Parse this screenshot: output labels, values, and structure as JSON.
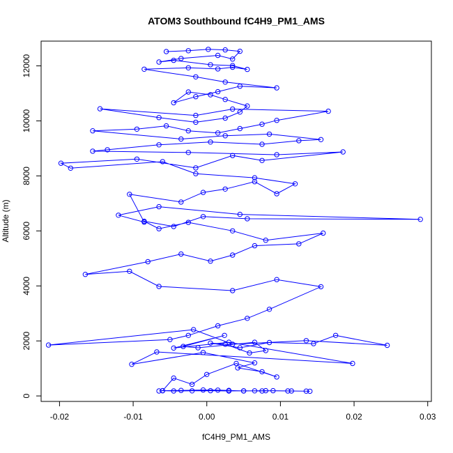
{
  "chart_data": {
    "type": "line",
    "title": "ATOM3 Southbound fC4H9_PM1_AMS",
    "xlabel": "fC4H9_PM1_AMS",
    "ylabel": "Altitude (m)",
    "xlim": [
      -0.0225,
      0.0305
    ],
    "ylim": [
      -200,
      12900
    ],
    "xticks": [
      -0.02,
      -0.01,
      0.0,
      0.01,
      0.02,
      0.03
    ],
    "xtick_labels": [
      "-0.02",
      "-0.01",
      "0.00",
      "0.01",
      "0.02",
      "0.03"
    ],
    "yticks": [
      0,
      2000,
      4000,
      6000,
      8000,
      10000,
      12000
    ],
    "ytick_labels": [
      "0",
      "2000",
      "4000",
      "6000",
      "8000",
      "10000",
      "12000"
    ],
    "grid": false,
    "legend": "none",
    "series": [
      {
        "color": "#0000ff",
        "marker": "open-circle",
        "x": [
          -0.0065,
          -0.006,
          -0.0045,
          -0.002,
          0.0005,
          0.003,
          0.005,
          0.0075,
          0.009,
          0.0115,
          0.014,
          0.0135,
          0.011,
          0.008,
          0.0065,
          0.005,
          0.003,
          0.0015,
          -0.0005,
          -0.0035,
          -0.006,
          -0.0045,
          -0.002,
          0.0,
          0.004,
          0.0095,
          0.0075,
          0.0042,
          0.0065,
          -0.0005,
          -0.0102,
          -0.0068,
          0.0198,
          0.003,
          -0.0045,
          0.0024,
          -0.0032,
          -0.0012,
          0.0065,
          0.008,
          0.0058,
          0.0025,
          0.0005,
          0.0045,
          0.0085,
          0.0145,
          0.0175,
          0.0245,
          0.0135,
          0.0035,
          -0.0018,
          -0.0215,
          -0.005,
          -0.0025,
          0.0015,
          0.0055,
          0.0085,
          0.0155,
          0.0095,
          0.0035,
          -0.0065,
          -0.0105,
          -0.0165,
          -0.008,
          -0.0035,
          0.0005,
          0.0035,
          0.0065,
          0.0125,
          0.0158,
          0.008,
          0.0035,
          -0.0025,
          -0.0065,
          -0.0085,
          -0.0045,
          -0.0005,
          0.0055,
          0.029,
          0.0045,
          -0.0065,
          -0.012,
          -0.0085,
          -0.0105,
          -0.0035,
          -0.0005,
          0.0025,
          0.0065,
          0.0095,
          0.012,
          0.0065,
          -0.0015,
          -0.006,
          -0.0185,
          -0.0198,
          -0.0095,
          -0.0015,
          0.0035,
          0.0075,
          0.0185,
          0.0095,
          -0.0025,
          -0.0155,
          -0.0135,
          -0.0065,
          0.0005,
          0.0075,
          0.0125,
          0.0155,
          0.0085,
          0.0025,
          -0.0035,
          -0.0155,
          -0.0095,
          -0.0055,
          -0.0025,
          0.0015,
          0.0045,
          0.0075,
          0.0095,
          0.0165,
          0.0035,
          -0.0015,
          -0.0145,
          -0.0065,
          -0.0015,
          0.0025,
          0.0045,
          0.0055,
          0.0025,
          0.0005,
          -0.0025,
          -0.0045,
          -0.0015,
          0.0015,
          0.0045,
          0.0095,
          0.0025,
          -0.0015,
          -0.0085,
          -0.0025,
          0.0015,
          0.0035,
          0.0055,
          0.0035,
          0.0005,
          -0.0045,
          -0.0065,
          -0.0035,
          0.0015,
          0.0035,
          0.0045,
          0.0025,
          0.0002,
          -0.0025,
          -0.0055
        ],
        "y": [
          180,
          190,
          180,
          185,
          190,
          180,
          185,
          180,
          190,
          180,
          170,
          175,
          180,
          190,
          185,
          180,
          200,
          210,
          215,
          200,
          190,
          650,
          420,
          780,
          1180,
          690,
          880,
          1020,
          1200,
          1580,
          1150,
          1600,
          1180,
          1950,
          1740,
          2200,
          1800,
          1750,
          1950,
          1650,
          1560,
          1880,
          1920,
          1750,
          1940,
          1900,
          2200,
          1840,
          2010,
          1880,
          2410,
          1850,
          2050,
          2200,
          2550,
          2820,
          3150,
          3970,
          4230,
          3830,
          3980,
          4530,
          4420,
          4880,
          5160,
          4900,
          5120,
          5460,
          5530,
          5920,
          5660,
          6000,
          6310,
          6080,
          6350,
          6160,
          6520,
          6440,
          6420,
          6600,
          6880,
          6570,
          6320,
          7330,
          7050,
          7400,
          7520,
          7790,
          7350,
          7710,
          7930,
          8080,
          8520,
          8280,
          8460,
          8610,
          8290,
          8740,
          8560,
          8870,
          8770,
          8850,
          8900,
          8950,
          9130,
          9230,
          9150,
          9280,
          9320,
          9520,
          9460,
          9340,
          9640,
          9700,
          9820,
          9640,
          9560,
          9720,
          9880,
          10020,
          10350,
          10430,
          10200,
          10440,
          10120,
          9950,
          10100,
          10320,
          10540,
          10780,
          10950,
          11050,
          10660,
          10880,
          11060,
          11260,
          11200,
          11410,
          11600,
          11880,
          11930,
          11890,
          11950,
          11870,
          12010,
          12040,
          12200,
          12140,
          12270,
          12380,
          12250,
          12530,
          12580,
          12600,
          12550,
          12520
        ]
      }
    ]
  }
}
